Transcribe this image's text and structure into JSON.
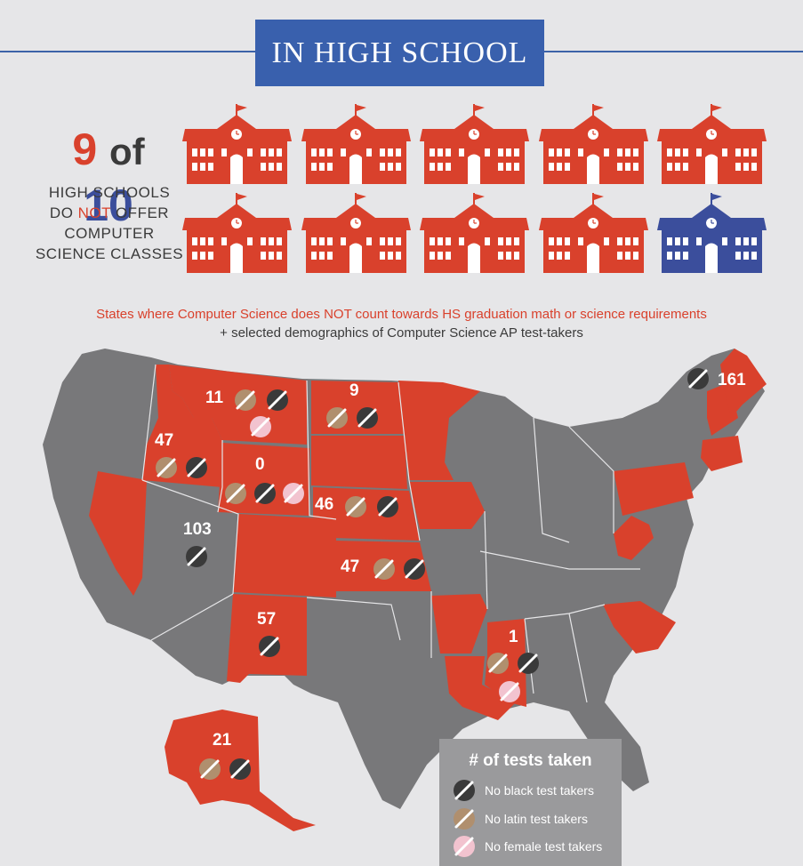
{
  "header": {
    "title": "IN HIGH SCHOOL"
  },
  "stat": {
    "n1": "9",
    "of": "of",
    "n2": "10",
    "line1": "HIGH SCHOOLS",
    "line2_a": "DO ",
    "line2_not": "NOT",
    "line2_b": " OFFER",
    "line3": "COMPUTER",
    "line4": "SCIENCE CLASSES"
  },
  "schools": {
    "total": 10,
    "highlighted": 9,
    "red_color": "#d9412c",
    "blue_color": "#3b4e9c",
    "icon": "school-building-icon"
  },
  "caption": {
    "line1": "States where Computer Science does NOT count towards HS graduation math or science requirements",
    "line2": "+ selected demographics of Computer Science AP test-takers"
  },
  "map": {
    "highlight_color": "#d9412c",
    "base_color": "#78787a",
    "states": [
      {
        "id": "ME",
        "count": "161",
        "badges": [
          "black"
        ]
      },
      {
        "id": "MT",
        "count": "11",
        "badges": [
          "latin",
          "black",
          "female"
        ]
      },
      {
        "id": "ND",
        "count": "9",
        "badges": [
          "latin",
          "black"
        ]
      },
      {
        "id": "ID",
        "count": "47",
        "badges": [
          "latin",
          "black"
        ]
      },
      {
        "id": "WY",
        "count": "0",
        "badges": [
          "latin",
          "black",
          "female"
        ]
      },
      {
        "id": "NE",
        "count": "46",
        "badges": [
          "latin",
          "black"
        ]
      },
      {
        "id": "UT",
        "count": "103",
        "badges": [
          "black"
        ]
      },
      {
        "id": "KS",
        "count": "47",
        "badges": [
          "latin",
          "black"
        ]
      },
      {
        "id": "NM",
        "count": "57",
        "badges": [
          "black"
        ]
      },
      {
        "id": "MS",
        "count": "1",
        "badges": [
          "latin",
          "black",
          "female"
        ]
      },
      {
        "id": "AK",
        "count": "21",
        "badges": [
          "latin",
          "black"
        ]
      }
    ]
  },
  "legend": {
    "title": "# of tests taken",
    "items": [
      {
        "type": "black",
        "label": "No black test takers"
      },
      {
        "type": "latin",
        "label": "No latin test takers"
      },
      {
        "type": "female",
        "label": "No female test takers"
      }
    ]
  },
  "colors": {
    "black_badge": "#3a3a3a",
    "latin_badge": "#b08f6e",
    "female_badge": "#f2c3cf",
    "title_blue": "#3960ad"
  }
}
